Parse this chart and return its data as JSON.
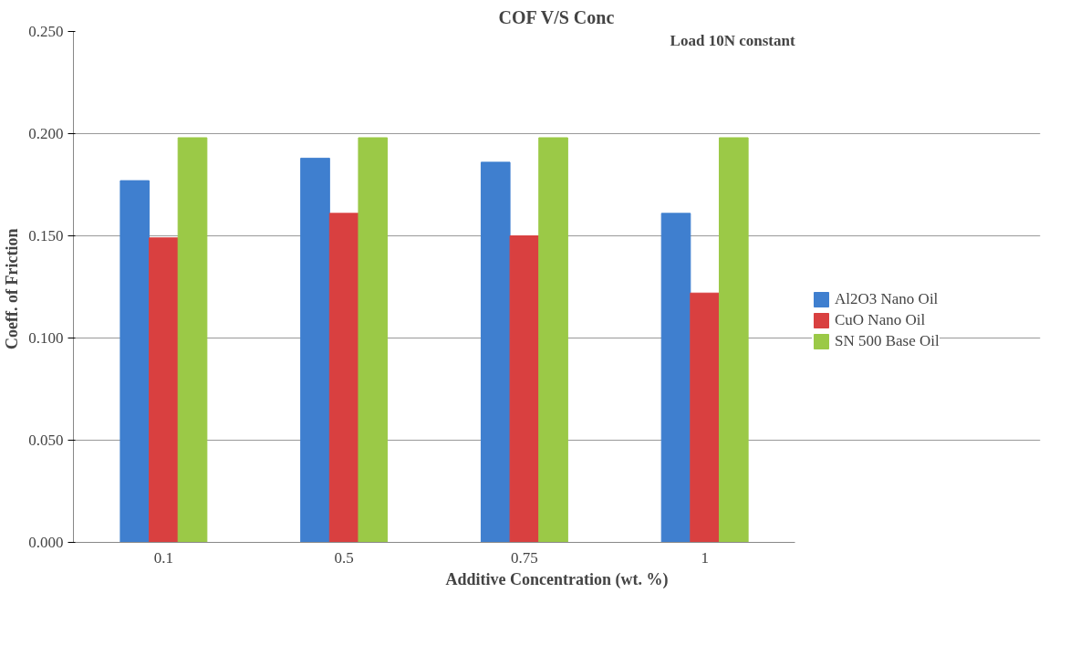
{
  "chart_data": {
    "type": "bar",
    "title": "COF V/S Conc",
    "xlabel": "Additive Concentration (wt. %)",
    "ylabel": "Coeff. of  Friction",
    "annotations": [
      "Load 10N constant"
    ],
    "categories": [
      "0.1",
      "0.5",
      "0.75",
      "1"
    ],
    "series": [
      {
        "name": "Al2O3 Nano Oil",
        "color": "#3f7fcf",
        "values": [
          0.177,
          0.188,
          0.186,
          0.161
        ]
      },
      {
        "name": "CuO Nano Oil",
        "color": "#d94040",
        "values": [
          0.149,
          0.161,
          0.15,
          0.122
        ]
      },
      {
        "name": "SN 500 Base Oil",
        "color": "#9bc947",
        "values": [
          0.198,
          0.198,
          0.198,
          0.198
        ]
      }
    ],
    "ylim": [
      0,
      0.25
    ],
    "yticks": [
      {
        "value": 0,
        "label": "0.000"
      },
      {
        "value": 0.05,
        "label": "0.050"
      },
      {
        "value": 0.1,
        "label": "0.100"
      },
      {
        "value": 0.15,
        "label": "0.150"
      },
      {
        "value": 0.2,
        "label": "0.200"
      },
      {
        "value": 0.25,
        "label": "0.250"
      }
    ],
    "grid": "y",
    "legend": "right"
  }
}
